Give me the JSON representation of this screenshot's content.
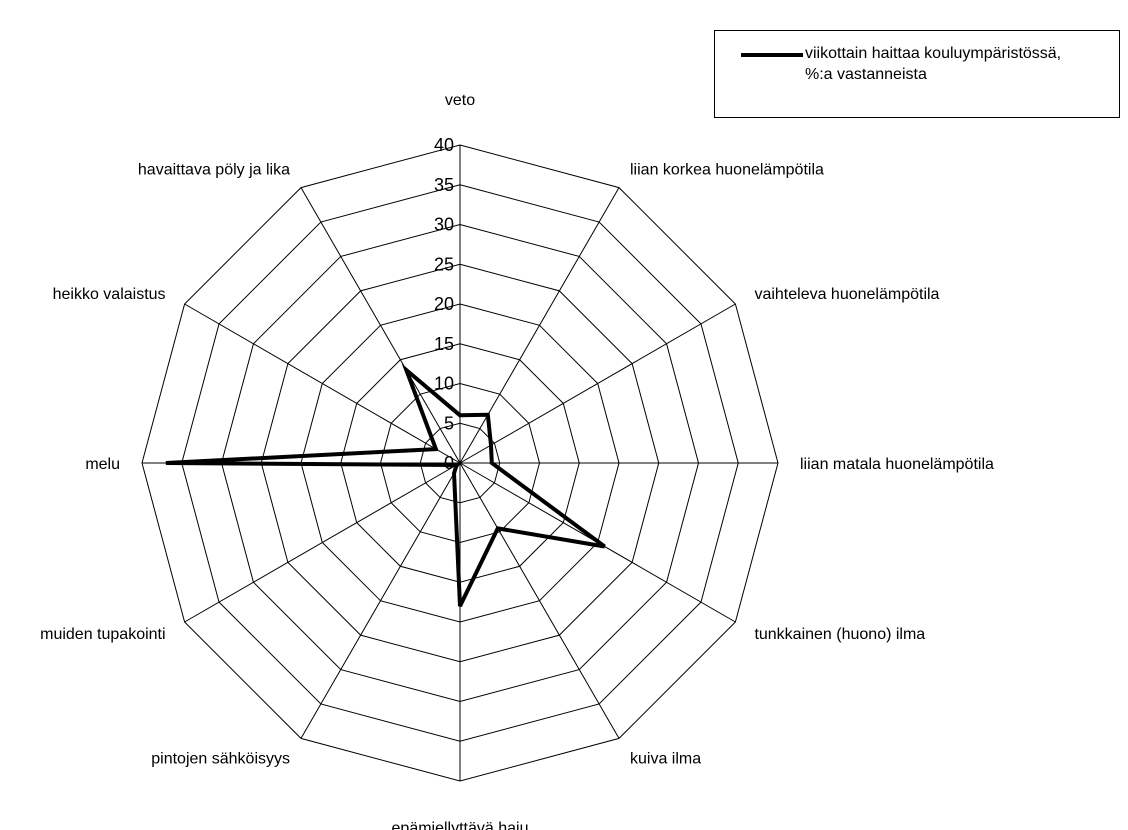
{
  "chart_data": {
    "type": "radar",
    "categories": [
      "veto",
      "liian korkea huonelämpötila",
      "vaihteleva huonelämpötila",
      "liian matala huonelämpötila",
      "tunkkainen (huono) ilma",
      "kuiva ilma",
      "epämiellyttävä haju",
      "pintojen sähköisyys",
      "muiden tupakointi",
      "melu",
      "heikko valaistus",
      "havaittava pöly ja lika"
    ],
    "series": [
      {
        "name": "viikottain haittaa kouluympäristössä, %:a vastanneista",
        "values": [
          6,
          7,
          4.5,
          4,
          21,
          9.5,
          18,
          1.5,
          0.5,
          37,
          3.5,
          13.5
        ]
      }
    ],
    "rlim": [
      0,
      40
    ],
    "ticks": [
      "0",
      "5",
      "10",
      "15",
      "20",
      "25",
      "30",
      "35",
      "40"
    ],
    "grid": true,
    "legend_position": "top-right",
    "series_color": "#000000"
  },
  "legend": {
    "label": "viikottain haittaa kouluympäristössä,\n%:a vastanneista"
  }
}
